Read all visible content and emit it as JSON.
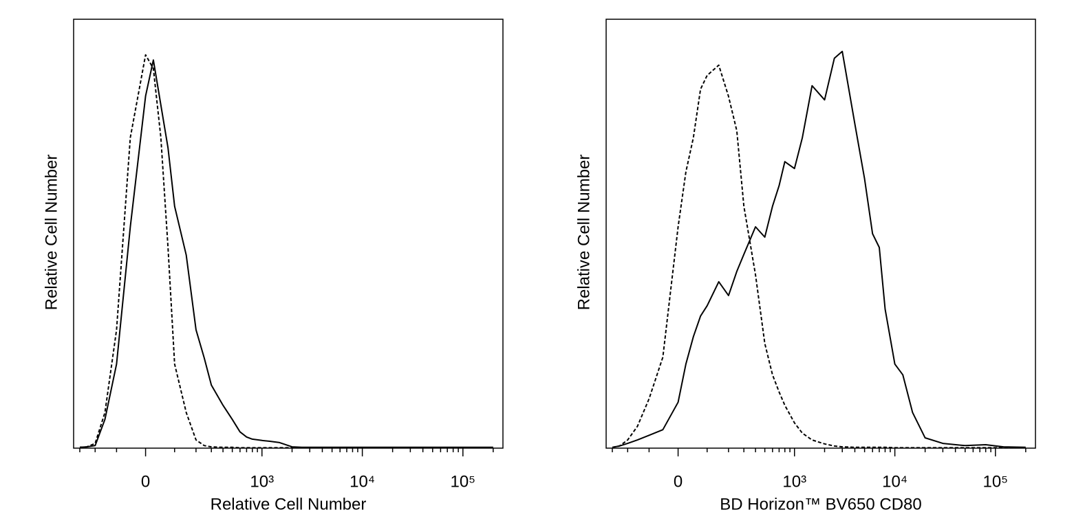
{
  "chart_data": [
    {
      "type": "line",
      "xlabel": "Relative Cell Number",
      "ylabel": "Relative Cell Number",
      "xscale": "biexponential",
      "xlim": [
        -350,
        250000
      ],
      "ylim": [
        0,
        100
      ],
      "xticks": [
        0,
        {
          "value": 1000,
          "label": "10³"
        },
        {
          "value": 10000,
          "label": "10⁴"
        },
        {
          "value": 100000,
          "label": "10⁵"
        }
      ],
      "xminorticks": [
        -300,
        -200,
        -100,
        100,
        200,
        300,
        400,
        500,
        600,
        700,
        800,
        900,
        2000,
        3000,
        4000,
        5000,
        6000,
        7000,
        8000,
        9000,
        20000,
        30000,
        40000,
        50000,
        60000,
        70000,
        80000,
        90000,
        200000
      ],
      "x": [
        -300,
        -250,
        -200,
        -150,
        -100,
        -50,
        0,
        25,
        50,
        75,
        100,
        150,
        200,
        250,
        300,
        400,
        500,
        600,
        700,
        800,
        1000,
        1200,
        1500,
        2000,
        2500,
        3000,
        4000,
        5000,
        6000,
        7000,
        8000,
        10000,
        12000,
        15000,
        20000,
        30000,
        50000,
        80000,
        120000,
        200000
      ],
      "series": [
        {
          "color": "#000000",
          "dash": false,
          "values": [
            0.2,
            0.3,
            0.6,
            6.7,
            19.6,
            51.6,
            82.1,
            90.5,
            80,
            70,
            56.4,
            45,
            27.6,
            21,
            14.7,
            10,
            6.7,
            3.8,
            2.6,
            2.1,
            1.8,
            1.6,
            1.3,
            0.3,
            0.2,
            0.2,
            0.2,
            0.2,
            0.2,
            0.2,
            0.2,
            0.2,
            0.2,
            0.2,
            0.2,
            0.2,
            0.2,
            0.2,
            0.2,
            0.2
          ]
        },
        {
          "color": "#000000",
          "dash": true,
          "values": [
            0.2,
            0.3,
            1.1,
            8.3,
            27.6,
            72.4,
            91.7,
            88.5,
            72.4,
            46.8,
            19.6,
            8.3,
            1.9,
            0.6,
            0.3,
            0.2,
            0.2,
            0.1,
            0.1,
            0.1,
            0.1,
            0.1,
            0.1,
            0.1,
            0.1,
            0.1,
            0.1,
            0.1,
            0.1,
            0.1,
            0.1,
            0.1,
            0.1,
            0.1,
            0.1,
            0.1,
            0.1,
            0.1,
            0.1,
            0.1
          ]
        }
      ]
    },
    {
      "type": "line",
      "xlabel": "BD Horizon™ BV650 CD80",
      "ylabel": "Relative Cell Number",
      "xscale": "biexponential",
      "xlim": [
        -350,
        250000
      ],
      "ylim": [
        0,
        100
      ],
      "xticks": [
        0,
        {
          "value": 1000,
          "label": "10³"
        },
        {
          "value": 10000,
          "label": "10⁴"
        },
        {
          "value": 100000,
          "label": "10⁵"
        }
      ],
      "xminorticks": [
        -300,
        -200,
        -100,
        100,
        200,
        300,
        400,
        500,
        600,
        700,
        800,
        900,
        2000,
        3000,
        4000,
        5000,
        6000,
        7000,
        8000,
        9000,
        20000,
        30000,
        40000,
        50000,
        60000,
        70000,
        80000,
        90000,
        200000
      ],
      "x": [
        -300,
        -250,
        -200,
        -150,
        -100,
        -50,
        0,
        25,
        50,
        75,
        100,
        150,
        200,
        250,
        300,
        400,
        500,
        600,
        700,
        800,
        1000,
        1200,
        1500,
        2000,
        2500,
        3000,
        4000,
        5000,
        6000,
        7000,
        8000,
        10000,
        12000,
        15000,
        20000,
        30000,
        50000,
        80000,
        120000,
        200000
      ],
      "series": [
        {
          "color": "#000000",
          "dash": false,
          "values": [
            0.2,
            0.5,
            1.1,
            1.9,
            3,
            4.3,
            10.7,
            19.6,
            26,
            30.8,
            33.2,
            38.8,
            35.6,
            41.2,
            45.2,
            51.6,
            49.2,
            56.4,
            61.2,
            66.8,
            65.2,
            72.4,
            84.5,
            81.2,
            90.9,
            92.5,
            75.6,
            62.8,
            50,
            46.8,
            32.4,
            19.6,
            17.1,
            8.3,
            2.4,
            1.1,
            0.6,
            0.8,
            0.3,
            0.2
          ]
        },
        {
          "color": "#000000",
          "dash": true,
          "values": [
            0.2,
            0.5,
            1.9,
            5.1,
            11.5,
            21.2,
            51.6,
            64.4,
            72.4,
            83.7,
            86.9,
            89.3,
            82,
            74,
            56.4,
            40.4,
            24.4,
            17.1,
            13.1,
            10,
            5.9,
            3.5,
            1.9,
            1,
            0.5,
            0.3,
            0.2,
            0.2,
            0.2,
            0.2,
            0.2,
            0.1,
            0.1,
            0.1,
            0.1,
            0.1,
            0.1,
            0.1,
            0.1,
            0.1
          ]
        }
      ]
    }
  ]
}
